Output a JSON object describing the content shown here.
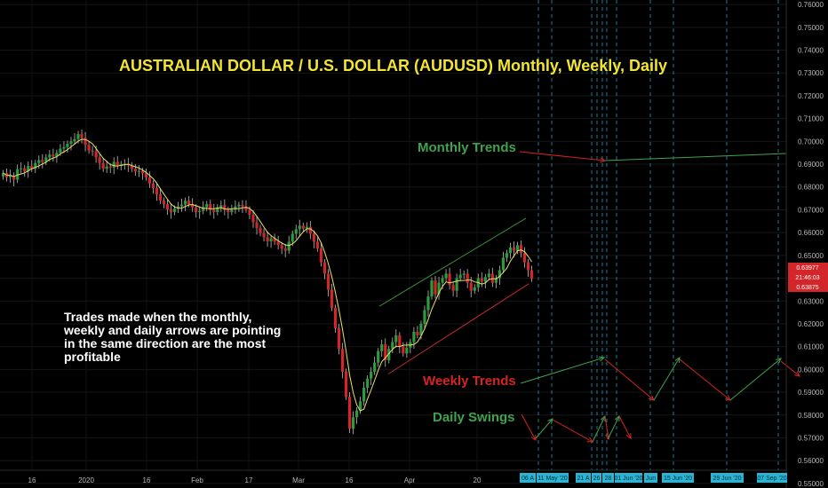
{
  "chart_data": {
    "type": "candlestick",
    "title": "AUSTRALIAN DOLLAR / U.S. DOLLAR (AUDUSD) Monthly, Weekly, Daily",
    "annotation_text": "Trades made when the monthly, weekly and daily arrows are pointing in the same direction are the most profitable",
    "labels": {
      "monthly": "Monthly Trends",
      "weekly": "Weekly Trends",
      "daily": "Daily Swings"
    },
    "y_ticks": [
      "0.76000",
      "0.75000",
      "0.74000",
      "0.73000",
      "0.72000",
      "0.71000",
      "0.70000",
      "0.69000",
      "0.68000",
      "0.67000",
      "0.66000",
      "0.65000",
      "0.64000",
      "0.63000",
      "0.62000",
      "0.61000",
      "0.60000",
      "0.59000",
      "0.58000",
      "0.57000",
      "0.56000",
      "0.55000"
    ],
    "ylim": [
      0.548,
      0.762
    ],
    "x_ticks": [
      "16",
      "2020",
      "16",
      "Feb",
      "17",
      "Mar",
      "16",
      "Apr",
      "20"
    ],
    "price_labels": {
      "high": "0.63977",
      "timer": "21:46:03",
      "low": "0.63875"
    },
    "date_boxes": [
      "06 A",
      "11 May '20",
      "21 A",
      "26",
      "28",
      "01 Jun '20",
      "Jun",
      "15 Jun '20",
      "29 Jun '20",
      "07 Sep '20"
    ],
    "close_path": [
      0.6861,
      0.6843,
      0.685,
      0.6832,
      0.6878,
      0.6882,
      0.6869,
      0.6892,
      0.688,
      0.6905,
      0.6918,
      0.691,
      0.693,
      0.6942,
      0.6935,
      0.695,
      0.6968,
      0.6975,
      0.699,
      0.7,
      0.701,
      0.7032,
      0.7015,
      0.6985,
      0.696,
      0.6955,
      0.693,
      0.6905,
      0.688,
      0.689,
      0.6885,
      0.691,
      0.6892,
      0.69,
      0.6902,
      0.6895,
      0.688,
      0.6868,
      0.687,
      0.686,
      0.6842,
      0.6815,
      0.6795,
      0.6768,
      0.674,
      0.6725,
      0.6702,
      0.669,
      0.6705,
      0.6715,
      0.6723,
      0.674,
      0.6725,
      0.671,
      0.669,
      0.6695,
      0.6712,
      0.6725,
      0.67,
      0.669,
      0.671,
      0.672,
      0.67,
      0.669,
      0.6702,
      0.6715,
      0.6722,
      0.6715,
      0.6701,
      0.6678,
      0.6645,
      0.662,
      0.6598,
      0.658,
      0.6562,
      0.6575,
      0.656,
      0.6545,
      0.653,
      0.6521,
      0.656,
      0.6595,
      0.6615,
      0.663,
      0.6618,
      0.6625,
      0.6595,
      0.656,
      0.653,
      0.647,
      0.642,
      0.635,
      0.627,
      0.618,
      0.609,
      0.599,
      0.588,
      0.574,
      0.579,
      0.582,
      0.586,
      0.592,
      0.596,
      0.599,
      0.603,
      0.608,
      0.611,
      0.604,
      0.609,
      0.612,
      0.615,
      0.61,
      0.607,
      0.6095,
      0.612,
      0.6165,
      0.615,
      0.62,
      0.626,
      0.632,
      0.639,
      0.633,
      0.638,
      0.64,
      0.642,
      0.637,
      0.6345,
      0.64,
      0.6415,
      0.642,
      0.638,
      0.6345,
      0.636,
      0.64,
      0.6385,
      0.6405,
      0.642,
      0.638,
      0.64,
      0.6435,
      0.649,
      0.651,
      0.6535,
      0.652,
      0.6545,
      0.651,
      0.647,
      0.6435,
      0.6398
    ]
  }
}
